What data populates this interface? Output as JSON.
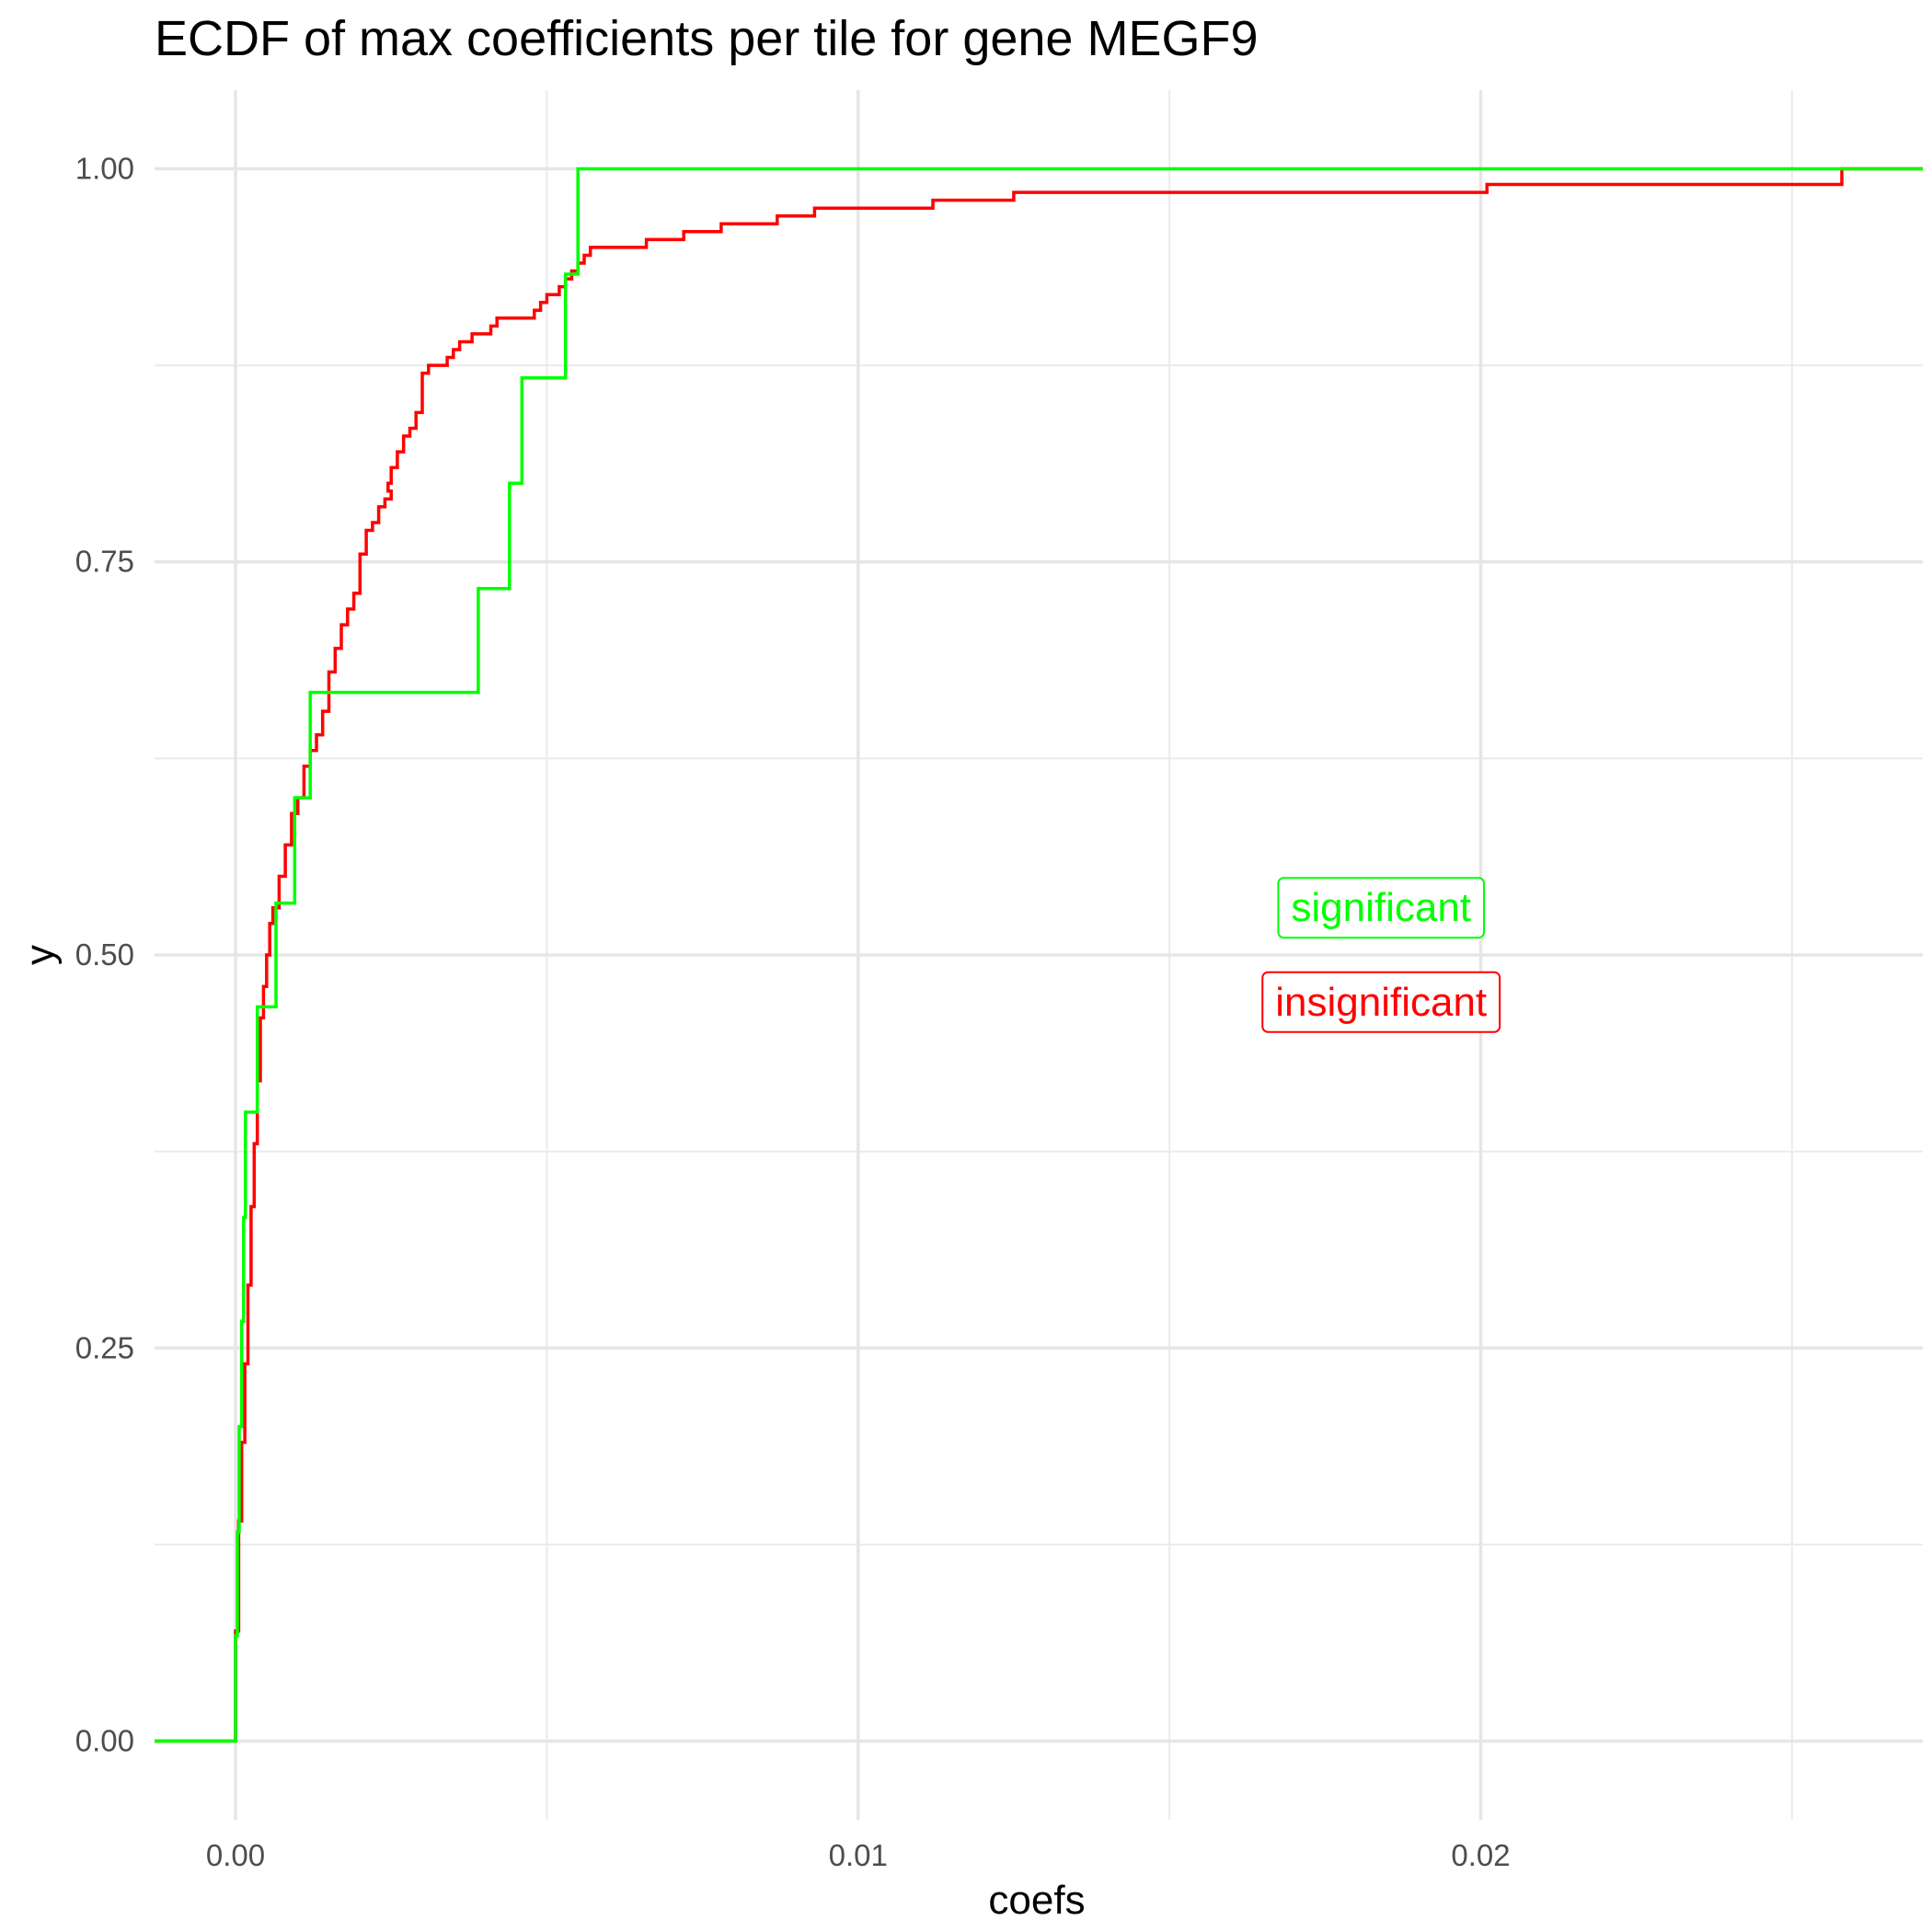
{
  "chart_data": {
    "type": "line",
    "step": true,
    "title": "ECDF of max coefficients per tile for gene MEGF9",
    "xlabel": "coefs",
    "ylabel": "y",
    "xlim": [
      -0.0013,
      0.0271
    ],
    "ylim": [
      -0.05,
      1.05
    ],
    "x_ticks": [
      0.0,
      0.01,
      0.02
    ],
    "x_tick_labels": [
      "0.00",
      "0.01",
      "0.02"
    ],
    "x_minor_ticks": [
      0.005,
      0.015,
      0.025
    ],
    "y_ticks": [
      0.0,
      0.25,
      0.5,
      0.75,
      1.0
    ],
    "y_tick_labels": [
      "0.00",
      "0.25",
      "0.50",
      "0.75",
      "1.00"
    ],
    "y_minor_ticks": [
      0.125,
      0.375,
      0.625,
      0.875
    ],
    "grid": true,
    "legend": "none",
    "series": [
      {
        "color": "#ff0000",
        "points": [
          [
            -0.0013,
            0.0
          ],
          [
            0.0,
            0.0
          ],
          [
            0.0,
            0.07
          ],
          [
            5e-05,
            0.14
          ],
          [
            0.0001,
            0.19
          ],
          [
            0.00015,
            0.24
          ],
          [
            0.0002,
            0.29
          ],
          [
            0.00025,
            0.34
          ],
          [
            0.0003,
            0.38
          ],
          [
            0.00035,
            0.42
          ],
          [
            0.0004,
            0.46
          ],
          [
            0.00045,
            0.48
          ],
          [
            0.0005,
            0.5
          ],
          [
            0.00055,
            0.52
          ],
          [
            0.0006,
            0.53
          ],
          [
            0.0007,
            0.55
          ],
          [
            0.0008,
            0.57
          ],
          [
            0.0009,
            0.59
          ],
          [
            0.001,
            0.6
          ],
          [
            0.0011,
            0.62
          ],
          [
            0.0012,
            0.63
          ],
          [
            0.0013,
            0.64
          ],
          [
            0.0014,
            0.655
          ],
          [
            0.0015,
            0.68
          ],
          [
            0.0016,
            0.695
          ],
          [
            0.0017,
            0.71
          ],
          [
            0.0018,
            0.72
          ],
          [
            0.0019,
            0.73
          ],
          [
            0.002,
            0.755
          ],
          [
            0.0021,
            0.77
          ],
          [
            0.0022,
            0.775
          ],
          [
            0.0023,
            0.785
          ],
          [
            0.0024,
            0.79
          ],
          [
            0.0025,
            0.795
          ],
          [
            0.00245,
            0.8
          ],
          [
            0.0025,
            0.81
          ],
          [
            0.0026,
            0.82
          ],
          [
            0.0027,
            0.83
          ],
          [
            0.0028,
            0.835
          ],
          [
            0.0029,
            0.845
          ],
          [
            0.003,
            0.87
          ],
          [
            0.0031,
            0.875
          ],
          [
            0.0034,
            0.88
          ],
          [
            0.0035,
            0.885
          ],
          [
            0.0036,
            0.89
          ],
          [
            0.0038,
            0.895
          ],
          [
            0.0041,
            0.9
          ],
          [
            0.0042,
            0.905
          ],
          [
            0.0048,
            0.91
          ],
          [
            0.0049,
            0.915
          ],
          [
            0.005,
            0.92
          ],
          [
            0.0052,
            0.925
          ],
          [
            0.0053,
            0.93
          ],
          [
            0.0054,
            0.935
          ],
          [
            0.0055,
            0.94
          ],
          [
            0.0056,
            0.945
          ],
          [
            0.0057,
            0.95
          ],
          [
            0.0066,
            0.955
          ],
          [
            0.0072,
            0.96
          ],
          [
            0.0078,
            0.965
          ],
          [
            0.0087,
            0.97
          ],
          [
            0.0093,
            0.975
          ],
          [
            0.0112,
            0.98
          ],
          [
            0.0125,
            0.985
          ],
          [
            0.0201,
            0.99
          ],
          [
            0.0258,
            0.995
          ],
          [
            0.0258,
            1.0
          ],
          [
            0.0271,
            1.0
          ]
        ]
      },
      {
        "color": "#00ff00",
        "points": [
          [
            -0.0013,
            0.0
          ],
          [
            0.0,
            0.0
          ],
          [
            0.0,
            0.067
          ],
          [
            3e-05,
            0.133
          ],
          [
            6e-05,
            0.2
          ],
          [
            0.0001,
            0.267
          ],
          [
            0.00013,
            0.333
          ],
          [
            0.00016,
            0.4
          ],
          [
            0.00035,
            0.467
          ],
          [
            0.00065,
            0.533
          ],
          [
            0.00095,
            0.6
          ],
          [
            0.0012,
            0.667
          ],
          [
            0.0039,
            0.733
          ],
          [
            0.0044,
            0.8
          ],
          [
            0.0046,
            0.867
          ],
          [
            0.0053,
            0.933
          ],
          [
            0.0055,
            1.0
          ],
          [
            0.0271,
            1.0
          ]
        ]
      }
    ],
    "annotations": [
      {
        "text": "significant",
        "color": "#00ff00",
        "x": 0.0184,
        "y": 0.53
      },
      {
        "text": "insignificant",
        "color": "#ff0000",
        "x": 0.0184,
        "y": 0.47
      }
    ]
  }
}
